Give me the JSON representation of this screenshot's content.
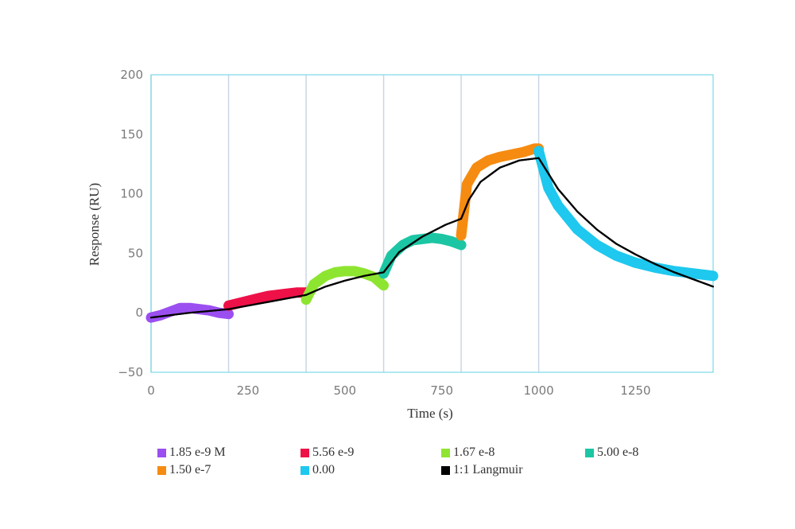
{
  "chart_data": {
    "type": "line",
    "xlabel": "Time (s)",
    "ylabel": "Response (RU)",
    "xlim": [
      0,
      1450
    ],
    "ylim": [
      -50,
      200
    ],
    "x_ticks": [
      "0",
      "250",
      "500",
      "750",
      "1000",
      "1250"
    ],
    "x_tick_values": [
      0,
      250,
      500,
      750,
      1000,
      1250
    ],
    "y_ticks": [
      "200",
      "150",
      "100",
      "50",
      "0",
      "−50"
    ],
    "y_tick_values": [
      200,
      150,
      100,
      50,
      0,
      -50
    ],
    "injection_boundaries": [
      0,
      200,
      400,
      600,
      800,
      1000
    ],
    "grid": "vertical lines at injection boundaries",
    "legend_position": "bottom",
    "series": [
      {
        "name": "1.85 e-9 M",
        "color": "#9b4ff0",
        "x": [
          0,
          25,
          50,
          75,
          100,
          125,
          150,
          175,
          200
        ],
        "y": [
          -4,
          -2,
          1,
          4,
          4,
          3,
          2,
          0,
          -1
        ]
      },
      {
        "name": "5.56 e-9",
        "color": "#ee1148",
        "x": [
          200,
          225,
          250,
          275,
          300,
          325,
          350,
          375,
          400
        ],
        "y": [
          6,
          8,
          10,
          12,
          14,
          15,
          16,
          17,
          17
        ]
      },
      {
        "name": "1.67 e-8",
        "color": "#8ee531",
        "x": [
          400,
          420,
          450,
          475,
          500,
          525,
          550,
          575,
          600
        ],
        "y": [
          11,
          24,
          31,
          34,
          35,
          35,
          33,
          30,
          23
        ]
      },
      {
        "name": "5.00 e-8",
        "color": "#1cc6a4",
        "x": [
          600,
          620,
          650,
          675,
          700,
          725,
          750,
          775,
          800
        ],
        "y": [
          33,
          48,
          57,
          61,
          62,
          63,
          62,
          60,
          57
        ]
      },
      {
        "name": "1.50 e-7",
        "color": "#f68b11",
        "x": [
          800,
          815,
          840,
          870,
          900,
          930,
          960,
          990,
          1000
        ],
        "y": [
          65,
          108,
          122,
          128,
          131,
          133,
          135,
          138,
          138
        ]
      },
      {
        "name": "0.00",
        "color": "#1ec8ee",
        "x": [
          1000,
          1025,
          1050,
          1100,
          1150,
          1200,
          1250,
          1300,
          1350,
          1400,
          1450
        ],
        "y": [
          136,
          105,
          90,
          70,
          57,
          48,
          42,
          38,
          35,
          33,
          31
        ]
      },
      {
        "name": "1:1 Langmuir",
        "color": "#000000",
        "x": [
          0,
          100,
          200,
          300,
          400,
          450,
          500,
          550,
          600,
          640,
          700,
          760,
          800,
          820,
          850,
          900,
          950,
          1000,
          1050,
          1100,
          1150,
          1200,
          1250,
          1300,
          1350,
          1400,
          1450
        ],
        "y": [
          -4,
          0,
          3,
          9,
          15,
          22,
          27,
          31,
          34,
          51,
          64,
          74,
          79,
          95,
          110,
          122,
          128,
          130,
          104,
          85,
          70,
          58,
          49,
          41,
          34,
          28,
          22
        ]
      }
    ]
  }
}
